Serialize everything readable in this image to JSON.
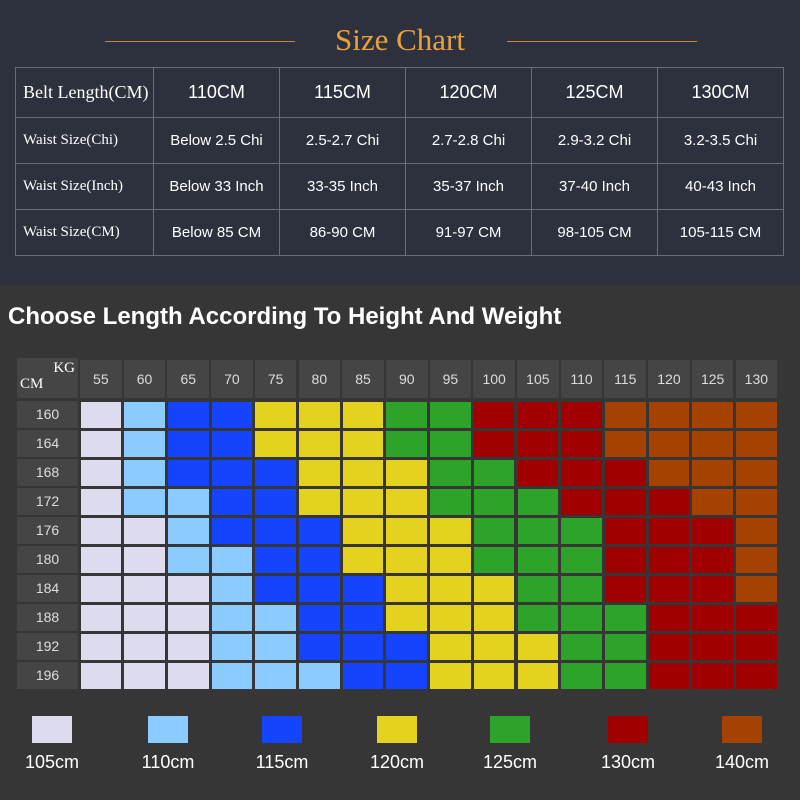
{
  "size_chart": {
    "title": "Size Chart",
    "rows": [
      {
        "label": "Belt Length(CM)",
        "values": [
          "110CM",
          "115CM",
          "120CM",
          "125CM",
          "130CM"
        ]
      },
      {
        "label": "Waist Size(Chi)",
        "values": [
          "Below 2.5 Chi",
          "2.5-2.7 Chi",
          "2.7-2.8 Chi",
          "2.9-3.2 Chi",
          "3.2-3.5 Chi"
        ]
      },
      {
        "label": "Waist Size(Inch)",
        "values": [
          "Below 33 Inch",
          "33-35 Inch",
          "35-37 Inch",
          "37-40 Inch",
          "40-43 Inch"
        ]
      },
      {
        "label": "Waist Size(CM)",
        "values": [
          "Below 85 CM",
          "86-90 CM",
          "91-97 CM",
          "98-105 CM",
          "105-115 CM"
        ]
      }
    ]
  },
  "chart_data": {
    "type": "heatmap",
    "title": "Choose Length According To Height And Weight",
    "xlabel": "KG",
    "ylabel": "CM",
    "x": [
      "55",
      "60",
      "65",
      "70",
      "75",
      "80",
      "85",
      "90",
      "95",
      "100",
      "105",
      "110",
      "115",
      "120",
      "125",
      "130"
    ],
    "y": [
      "160",
      "164",
      "168",
      "172",
      "176",
      "180",
      "184",
      "188",
      "192",
      "196"
    ],
    "legend": [
      {
        "label": "105cm",
        "color": "#dcdcee"
      },
      {
        "label": "110cm",
        "color": "#8ccbff"
      },
      {
        "label": "115cm",
        "color": "#1544ff"
      },
      {
        "label": "120cm",
        "color": "#e4d21e"
      },
      {
        "label": "125cm",
        "color": "#2ea32a"
      },
      {
        "label": "130cm",
        "color": "#a00000"
      },
      {
        "label": "140cm",
        "color": "#a54200"
      }
    ],
    "values": [
      [
        0,
        1,
        2,
        2,
        3,
        3,
        3,
        4,
        4,
        5,
        5,
        5,
        6,
        6,
        6,
        6
      ],
      [
        0,
        1,
        2,
        2,
        3,
        3,
        3,
        4,
        4,
        5,
        5,
        5,
        6,
        6,
        6,
        6
      ],
      [
        0,
        1,
        2,
        2,
        2,
        3,
        3,
        3,
        4,
        4,
        5,
        5,
        5,
        6,
        6,
        6
      ],
      [
        0,
        1,
        1,
        2,
        2,
        3,
        3,
        3,
        4,
        4,
        4,
        5,
        5,
        5,
        6,
        6
      ],
      [
        0,
        0,
        1,
        2,
        2,
        2,
        3,
        3,
        3,
        4,
        4,
        4,
        5,
        5,
        5,
        6
      ],
      [
        0,
        0,
        1,
        1,
        2,
        2,
        3,
        3,
        3,
        4,
        4,
        4,
        5,
        5,
        5,
        6
      ],
      [
        0,
        0,
        0,
        1,
        2,
        2,
        2,
        3,
        3,
        3,
        4,
        4,
        5,
        5,
        5,
        6
      ],
      [
        0,
        0,
        0,
        1,
        1,
        2,
        2,
        3,
        3,
        3,
        4,
        4,
        4,
        5,
        5,
        5
      ],
      [
        0,
        0,
        0,
        1,
        1,
        2,
        2,
        2,
        3,
        3,
        3,
        4,
        4,
        5,
        5,
        5
      ],
      [
        0,
        0,
        0,
        1,
        1,
        1,
        2,
        2,
        3,
        3,
        3,
        4,
        4,
        5,
        5,
        5
      ]
    ]
  }
}
